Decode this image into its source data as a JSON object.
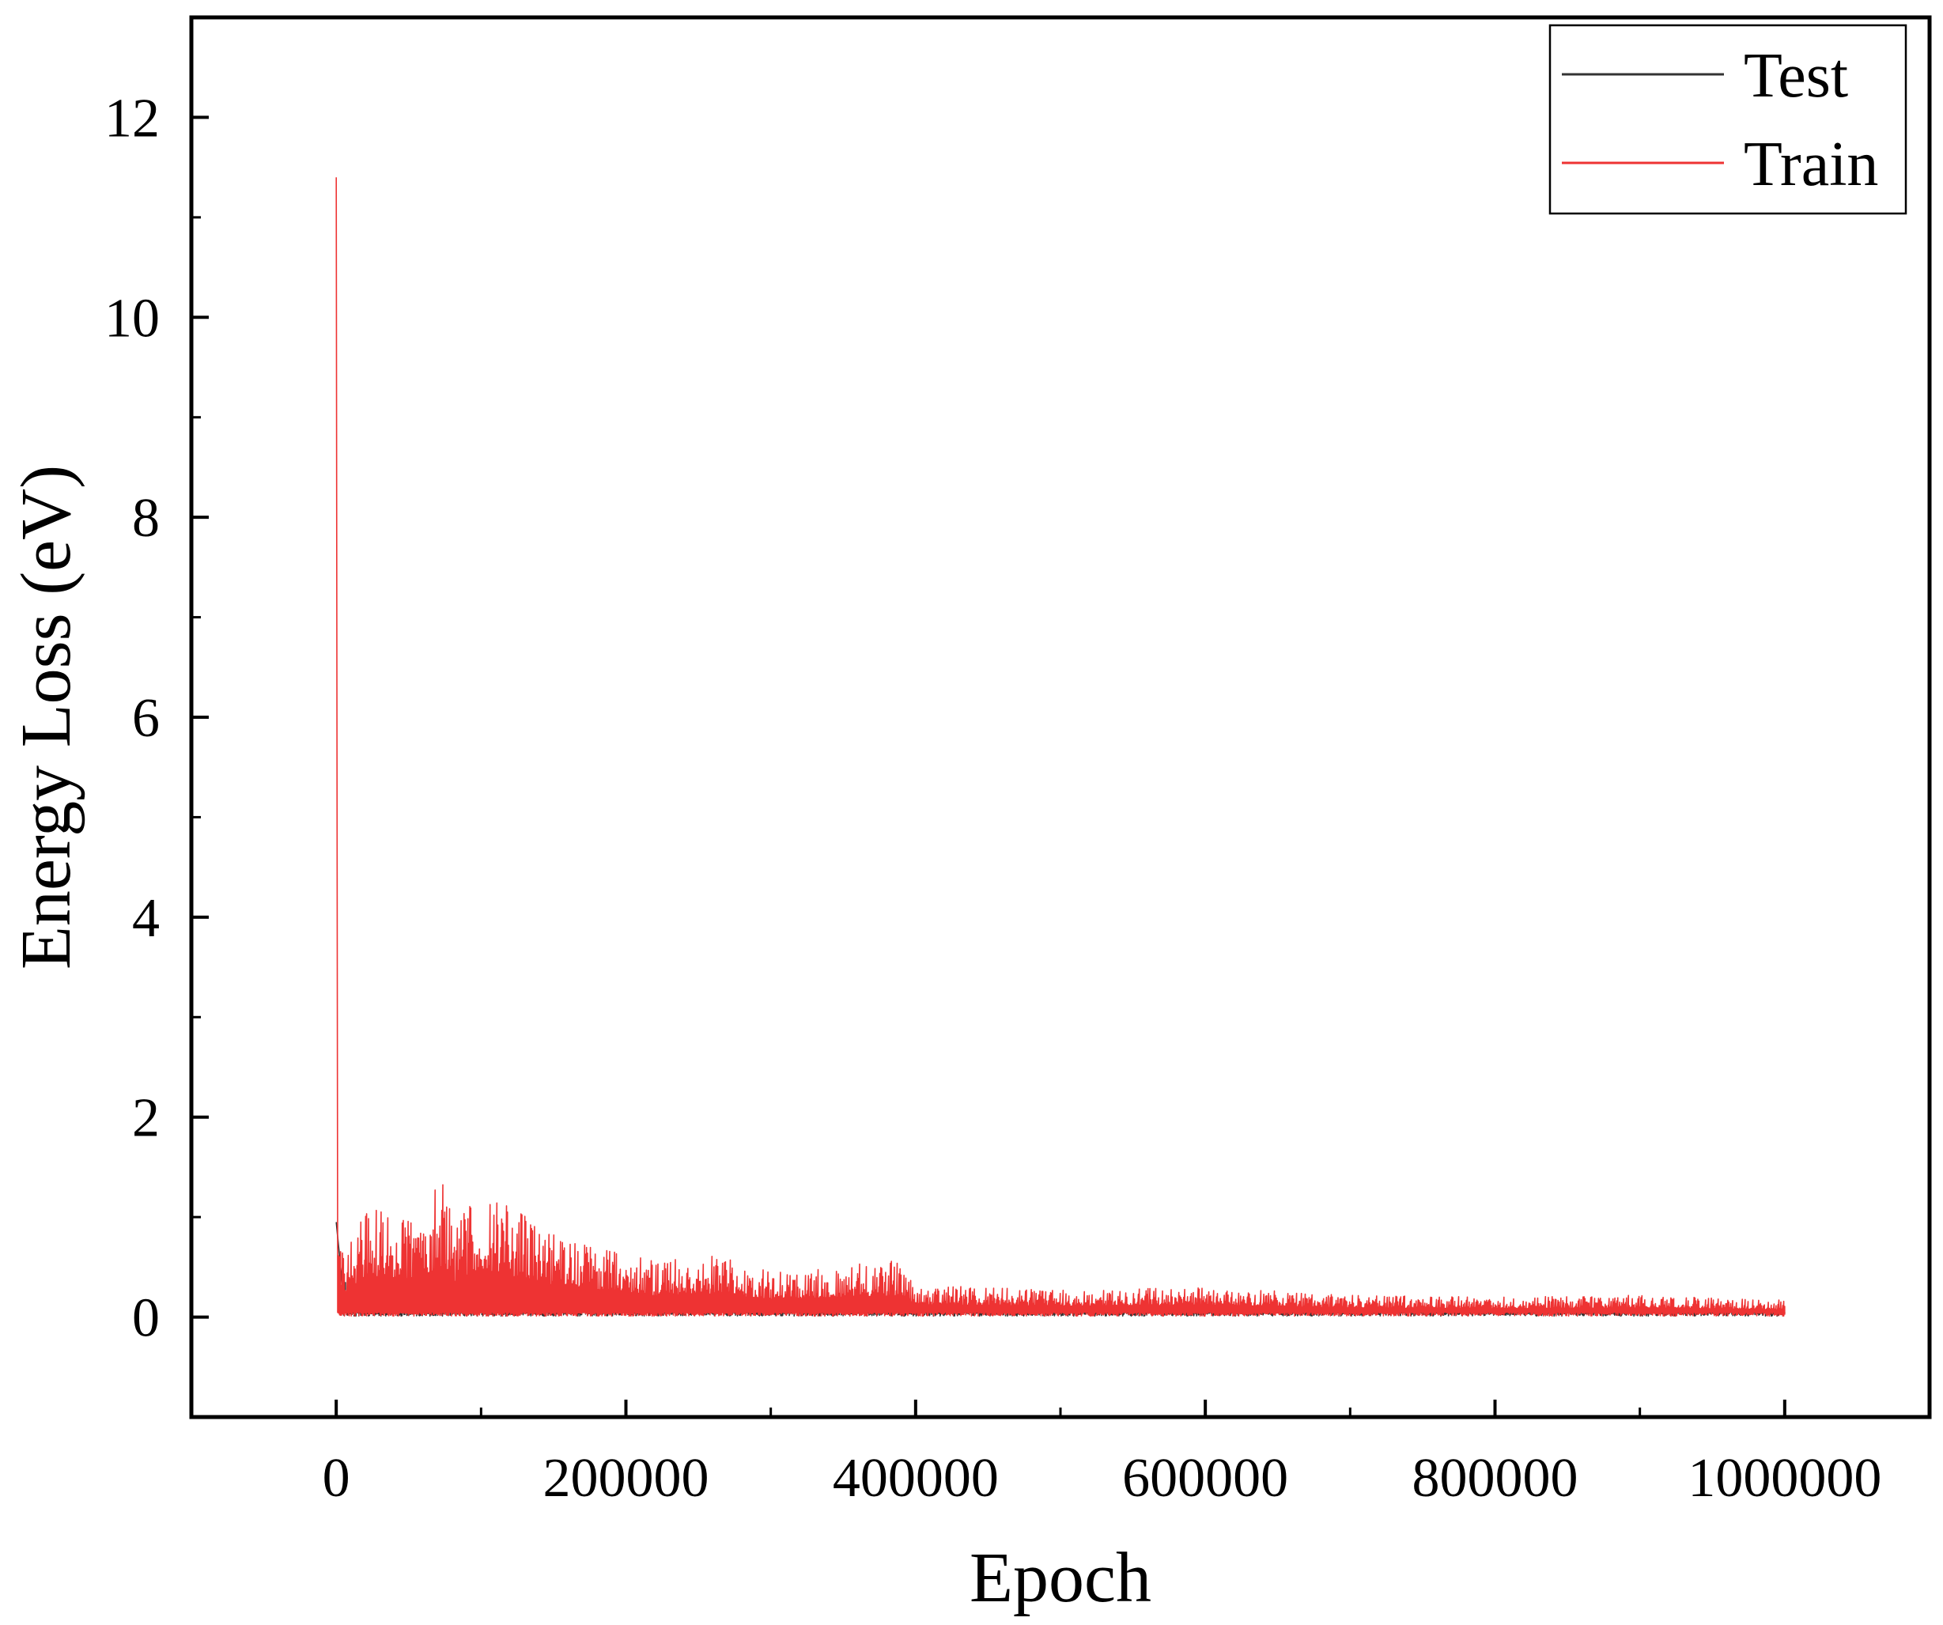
{
  "chart_data": {
    "type": "line",
    "title": "",
    "xlabel": "Epoch",
    "ylabel": "Energy Loss (eV)",
    "xlim": [
      -100000,
      1100000
    ],
    "ylim": [
      -1,
      13
    ],
    "x_ticks": [
      0,
      200000,
      400000,
      600000,
      800000,
      1000000
    ],
    "x_tick_labels": [
      "0",
      "200000",
      "400000",
      "600000",
      "800000",
      "1000000"
    ],
    "y_ticks": [
      0,
      2,
      4,
      6,
      8,
      10,
      12
    ],
    "y_tick_labels": [
      "0",
      "2",
      "4",
      "6",
      "8",
      "10",
      "12"
    ],
    "grid": false,
    "legend_position": "top-right",
    "series": [
      {
        "name": "Test",
        "color": "#333333",
        "x": [
          0,
          5000,
          20000,
          50000,
          80000,
          100000,
          150000,
          200000,
          250000,
          300000,
          400000,
          500000,
          600000,
          700000,
          800000,
          900000,
          1000000
        ],
        "values": [
          0.95,
          0.45,
          0.4,
          0.35,
          0.3,
          0.28,
          0.22,
          0.18,
          0.15,
          0.13,
          0.1,
          0.08,
          0.07,
          0.06,
          0.05,
          0.05,
          0.05
        ]
      },
      {
        "name": "Train",
        "color": "#ee3333",
        "x": [
          0,
          1000,
          5000,
          20000,
          50000,
          76000,
          80000,
          96000,
          100000,
          150000,
          200000,
          220000,
          260000,
          300000,
          390000,
          400000,
          500000,
          600000,
          700000,
          800000,
          900000,
          1000000
        ],
        "values": [
          11.4,
          0.9,
          0.6,
          1.1,
          1.0,
          1.4,
          0.9,
          1.25,
          1.3,
          0.85,
          0.65,
          0.55,
          0.6,
          0.45,
          0.55,
          0.3,
          0.25,
          0.28,
          0.2,
          0.18,
          0.2,
          0.15
        ]
      }
    ]
  }
}
